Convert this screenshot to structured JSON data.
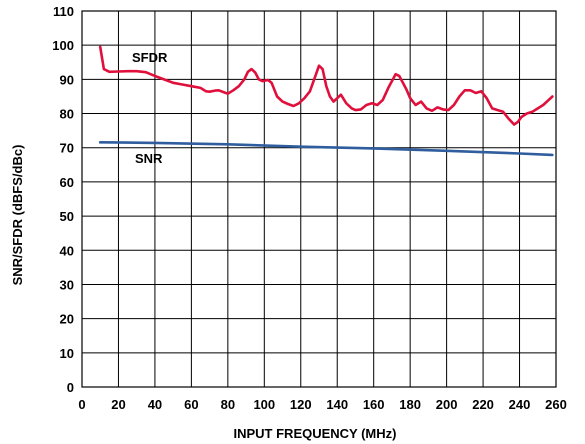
{
  "chart_data": {
    "type": "line",
    "xlabel": "INPUT FREQUENCY (MHz)",
    "ylabel": "SNR/SFDR (dBFS/dBc)",
    "xlim": [
      0,
      260
    ],
    "ylim": [
      0,
      110
    ],
    "xticks": [
      0,
      20,
      40,
      60,
      80,
      100,
      120,
      140,
      160,
      180,
      200,
      220,
      240,
      260
    ],
    "yticks": [
      0,
      10,
      20,
      30,
      40,
      50,
      60,
      70,
      80,
      90,
      100,
      110
    ],
    "grid": true,
    "legend": "none",
    "series": [
      {
        "name": "SFDR",
        "color": "#e0103c",
        "x": [
          10,
          12,
          15,
          20,
          25,
          30,
          35,
          40,
          45,
          50,
          55,
          60,
          65,
          68,
          70,
          73,
          75,
          78,
          80,
          83,
          86,
          89,
          91,
          93,
          95,
          97,
          99,
          102,
          104,
          107,
          110,
          113,
          116,
          119,
          122,
          125,
          128,
          130,
          132,
          134,
          136,
          138,
          140,
          142,
          145,
          148,
          150,
          153,
          156,
          159,
          162,
          165,
          168,
          170,
          172,
          174,
          176,
          178,
          180,
          183,
          186,
          189,
          192,
          195,
          198,
          201,
          204,
          207,
          210,
          213,
          216,
          219,
          222,
          225,
          228,
          231,
          234,
          237,
          239,
          241,
          244,
          247,
          250,
          253,
          256,
          258
        ],
        "y": [
          99.5,
          93,
          92.2,
          92.3,
          92.4,
          92.4,
          92.1,
          91,
          90,
          89,
          88.5,
          88,
          87.5,
          86.5,
          86.4,
          86.7,
          86.8,
          86.2,
          85.8,
          86.8,
          88,
          90,
          92.2,
          93,
          92,
          90,
          89.5,
          89.8,
          89,
          85,
          83.5,
          82.8,
          82.2,
          83,
          84.5,
          86.5,
          91,
          94,
          93,
          88,
          85,
          83.5,
          84.5,
          85.5,
          83,
          81.5,
          81,
          81.2,
          82.5,
          83,
          82.5,
          84,
          87.5,
          89.5,
          91.5,
          91,
          89,
          87,
          84.5,
          82.5,
          83.5,
          81.5,
          80.8,
          81.8,
          81.2,
          81,
          82.5,
          85,
          86.8,
          86.8,
          86,
          86.5,
          84.5,
          81.5,
          81,
          80.5,
          78.5,
          76.8,
          77.5,
          79,
          80,
          80.5,
          81.5,
          82.5,
          84,
          85
        ]
      },
      {
        "name": "SNR",
        "color": "#2f5d9e",
        "x": [
          10,
          40,
          80,
          120,
          160,
          200,
          240,
          258
        ],
        "y": [
          71.6,
          71.4,
          71,
          70.3,
          69.8,
          69.1,
          68.3,
          67.9
        ]
      }
    ]
  }
}
